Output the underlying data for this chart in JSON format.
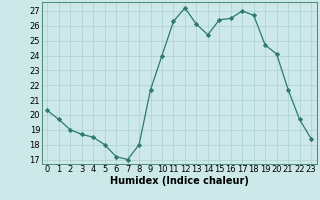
{
  "x": [
    0,
    1,
    2,
    3,
    4,
    5,
    6,
    7,
    8,
    9,
    10,
    11,
    12,
    13,
    14,
    15,
    16,
    17,
    18,
    19,
    20,
    21,
    22,
    23
  ],
  "y": [
    20.3,
    19.7,
    19.0,
    18.7,
    18.5,
    18.0,
    17.2,
    17.0,
    18.0,
    21.7,
    24.0,
    26.3,
    27.2,
    26.1,
    25.4,
    26.4,
    26.5,
    27.0,
    26.7,
    24.7,
    24.1,
    21.7,
    19.7,
    18.4
  ],
  "line_color": "#2d7a6b",
  "marker": "D",
  "marker_size": 2.2,
  "bg_color": "#cce8e8",
  "grid_color": "#aad0d0",
  "xlabel": "Humidex (Indice chaleur)",
  "ylabel_ticks": [
    17,
    18,
    19,
    20,
    21,
    22,
    23,
    24,
    25,
    26,
    27
  ],
  "ylim": [
    16.7,
    27.6
  ],
  "xlim": [
    -0.5,
    23.5
  ],
  "tick_fontsize": 6.0,
  "xlabel_fontsize": 7.0
}
